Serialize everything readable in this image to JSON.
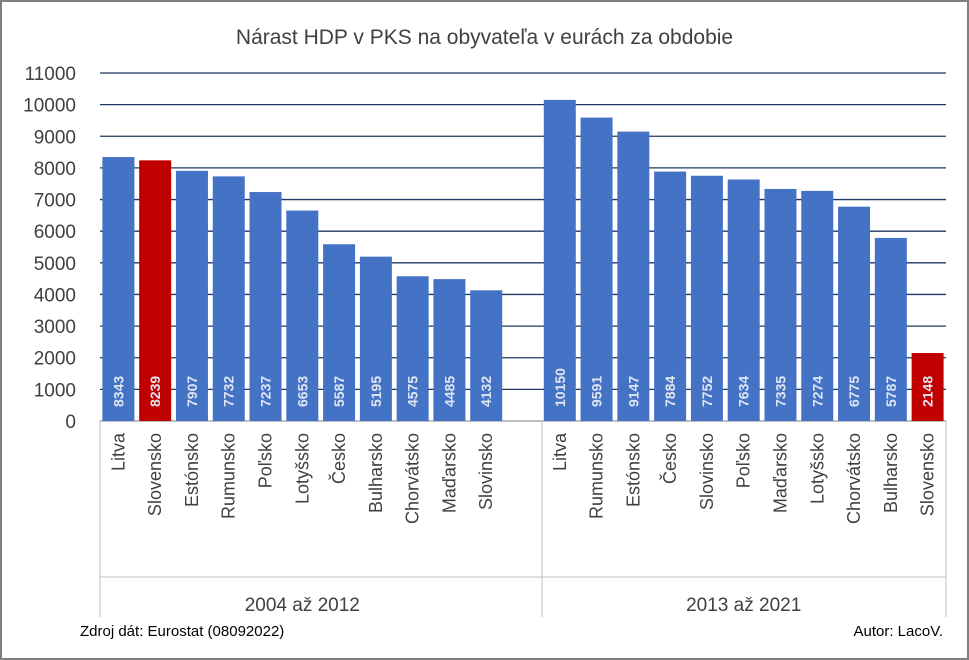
{
  "chart_data": {
    "type": "bar",
    "title": "Nárast HDP v PKS na obyvateľa v eurách za obdobie",
    "xlabel": "",
    "ylabel": "",
    "ylim": [
      0,
      11000
    ],
    "yticks": [
      0,
      1000,
      2000,
      3000,
      4000,
      5000,
      6000,
      7000,
      8000,
      9000,
      10000,
      11000
    ],
    "grid": true,
    "data_labels_inside": true,
    "colors": {
      "default": "#4472c4",
      "highlight": "#c00000"
    },
    "groups": [
      {
        "name": "2004 až 2012",
        "categories": [
          "Litva",
          "Slovensko",
          "Estónsko",
          "Rumunsko",
          "Poľsko",
          "Lotyšsko",
          "Česko",
          "Bulharsko",
          "Chorvátsko",
          "Maďarsko",
          "Slovinsko"
        ],
        "values": [
          8343,
          8239,
          7907,
          7732,
          7237,
          6653,
          5587,
          5195,
          4575,
          4485,
          4132
        ],
        "highlight": [
          "Slovensko"
        ]
      },
      {
        "name": "2013 až 2021",
        "categories": [
          "Litva",
          "Rumunsko",
          "Estónsko",
          "Česko",
          "Slovinsko",
          "Poľsko",
          "Maďarsko",
          "Lotyšsko",
          "Chorvátsko",
          "Bulharsko",
          "Slovensko"
        ],
        "values": [
          10150,
          9591,
          9147,
          7884,
          7752,
          7634,
          7335,
          7274,
          6775,
          5787,
          2148
        ],
        "highlight": [
          "Slovensko"
        ]
      }
    ]
  },
  "footer": {
    "source": "Zdroj dát: Eurostat (08092022)",
    "author": "Autor: LacoV."
  }
}
